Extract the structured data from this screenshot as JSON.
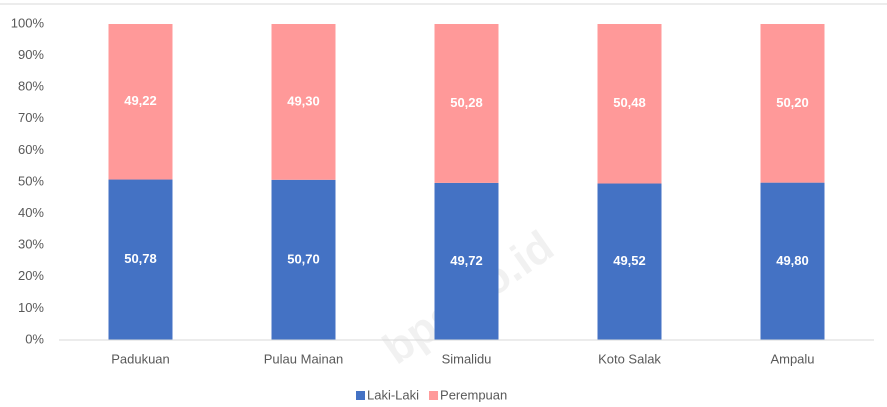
{
  "chart_data": {
    "type": "stacked_bar",
    "categories": [
      "Padukuan",
      "Pulau Mainan",
      "Simalidu",
      "Koto Salak",
      "Ampalu"
    ],
    "series": [
      {
        "name": "Laki-Laki",
        "color": "#4472c4",
        "values": [
          50.78,
          50.7,
          49.72,
          49.52,
          49.8
        ],
        "value_labels": [
          "50,78",
          "50,70",
          "49,72",
          "49,52",
          "49,80"
        ]
      },
      {
        "name": "Perempuan",
        "color": "#ff9999",
        "values": [
          49.22,
          49.3,
          50.28,
          50.48,
          50.2
        ],
        "value_labels": [
          "49,22",
          "49,30",
          "50,28",
          "50,48",
          "50,20"
        ]
      }
    ],
    "ylim": [
      0,
      100
    ],
    "yticks": [
      {
        "value": 0,
        "label": "0%"
      },
      {
        "value": 10,
        "label": "10%"
      },
      {
        "value": 20,
        "label": "20%"
      },
      {
        "value": 30,
        "label": "30%"
      },
      {
        "value": 40,
        "label": "40%"
      },
      {
        "value": 50,
        "label": "50%"
      },
      {
        "value": 60,
        "label": "60%"
      },
      {
        "value": 70,
        "label": "70%"
      },
      {
        "value": 80,
        "label": "80%"
      },
      {
        "value": 90,
        "label": "90%"
      },
      {
        "value": 100,
        "label": "100%"
      }
    ],
    "grid": false,
    "legend": "bottom",
    "watermark": "bps.go.id"
  }
}
